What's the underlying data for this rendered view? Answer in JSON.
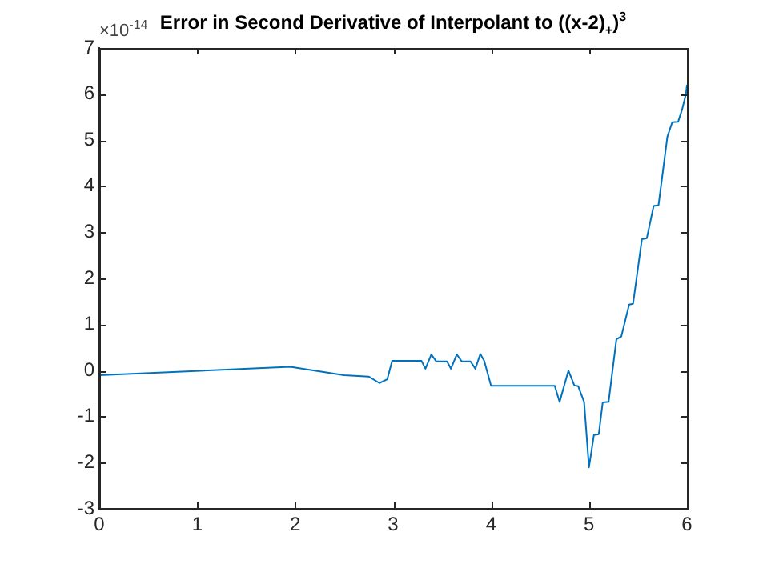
{
  "chart_data": {
    "type": "line",
    "title": "Error in Second Derivative of Interpolant to ((x-2)$_{+}$)$^{3}$",
    "annotations": [
      "×10$^{-14}$"
    ],
    "series": [
      {
        "color": "#0072bd",
        "x": [
          0,
          1.95,
          2.5,
          2.75,
          2.86,
          2.94,
          2.99,
          3.29,
          3.33,
          3.39,
          3.44,
          3.55,
          3.59,
          3.65,
          3.7,
          3.79,
          3.84,
          3.89,
          3.93,
          4.0,
          4.65,
          4.7,
          4.79,
          4.85,
          4.89,
          4.95,
          5.0,
          5.05,
          5.1,
          5.14,
          5.2,
          5.28,
          5.33,
          5.41,
          5.45,
          5.54,
          5.59,
          5.66,
          5.71,
          5.8,
          5.85,
          5.91,
          5.95,
          5.99,
          6
        ],
        "values": [
          -0.1,
          0.08,
          -0.1,
          -0.13,
          -0.27,
          -0.19,
          0.21,
          0.21,
          0.04,
          0.35,
          0.2,
          0.2,
          0.04,
          0.35,
          0.2,
          0.2,
          0.04,
          0.36,
          0.21,
          -0.33,
          -0.33,
          -0.68,
          0,
          -0.32,
          -0.34,
          -0.68,
          -2.1,
          -1.4,
          -1.38,
          -0.69,
          -0.68,
          0.68,
          0.74,
          1.43,
          1.45,
          2.85,
          2.87,
          3.57,
          3.59,
          5.07,
          5.39,
          5.4,
          5.66,
          6.0,
          6.2
        ]
      }
    ],
    "xlim": [
      0,
      6
    ],
    "xticks": [
      0,
      1,
      2,
      3,
      4,
      5,
      6
    ],
    "ylim": [
      -3,
      7
    ],
    "yticks": [
      -3,
      -2,
      -1,
      0,
      1,
      2,
      3,
      4,
      5,
      6,
      7
    ],
    "grid": false,
    "legend": false,
    "marker": "none",
    "line_style": "solid"
  }
}
